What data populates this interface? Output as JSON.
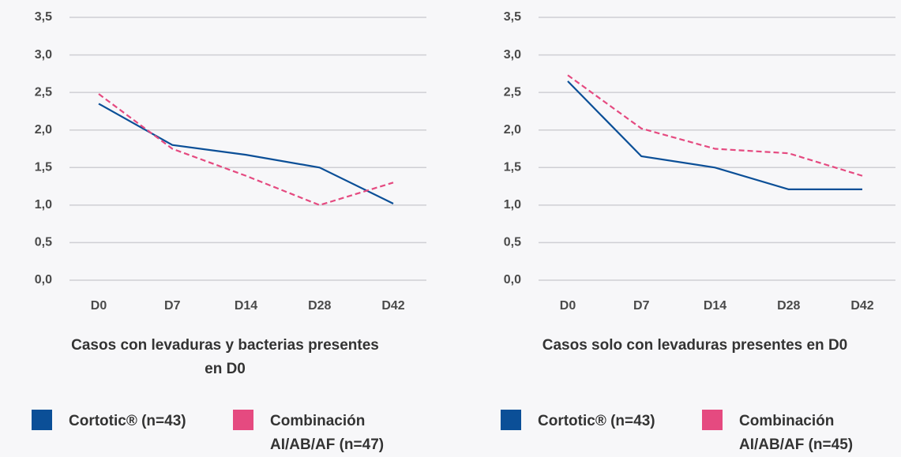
{
  "chart_data": [
    {
      "type": "line",
      "title": "Casos con levaduras y bacterias presentes en D0",
      "categories": [
        "D0",
        "D7",
        "D14",
        "D28",
        "D42"
      ],
      "series": [
        {
          "name": "Cortotic® (n=43)",
          "color": "#0b4f97",
          "dash": false,
          "values": [
            2.35,
            1.8,
            1.67,
            1.5,
            1.02
          ]
        },
        {
          "name": "Combinación AI/AB/AF (n=47)",
          "color": "#e54a80",
          "dash": true,
          "values": [
            2.48,
            1.75,
            1.39,
            1.0,
            1.3
          ]
        }
      ],
      "ylim": [
        0,
        3.5
      ],
      "yticks": [
        {
          "value": 0,
          "label": "0,0"
        },
        {
          "value": 0.5,
          "label": "0,5"
        },
        {
          "value": 1,
          "label": "1,0"
        },
        {
          "value": 1.5,
          "label": "1,5"
        },
        {
          "value": 2,
          "label": "2,0"
        },
        {
          "value": 2.5,
          "label": "2,5"
        },
        {
          "value": 3,
          "label": "3,0"
        },
        {
          "value": 3.5,
          "label": "3,5"
        }
      ],
      "grid": true
    },
    {
      "type": "line",
      "title": "Casos solo con levaduras presentes en D0",
      "categories": [
        "D0",
        "D7",
        "D14",
        "D28",
        "D42"
      ],
      "series": [
        {
          "name": "Cortotic® (n=43)",
          "color": "#0b4f97",
          "dash": false,
          "values": [
            2.65,
            1.65,
            1.5,
            1.21,
            1.21
          ]
        },
        {
          "name": "Combinación AI/AB/AF (n=45)",
          "color": "#e54a80",
          "dash": true,
          "values": [
            2.73,
            2.02,
            1.75,
            1.69,
            1.39
          ]
        }
      ],
      "ylim": [
        0,
        3.5
      ],
      "yticks": [
        {
          "value": 0,
          "label": "0,0"
        },
        {
          "value": 0.5,
          "label": "0,5"
        },
        {
          "value": 1,
          "label": "1,0"
        },
        {
          "value": 1.5,
          "label": "1,5"
        },
        {
          "value": 2,
          "label": "2,0"
        },
        {
          "value": 2.5,
          "label": "2,5"
        },
        {
          "value": 3,
          "label": "3,0"
        },
        {
          "value": 3.5,
          "label": "3,5"
        }
      ],
      "grid": true
    }
  ]
}
